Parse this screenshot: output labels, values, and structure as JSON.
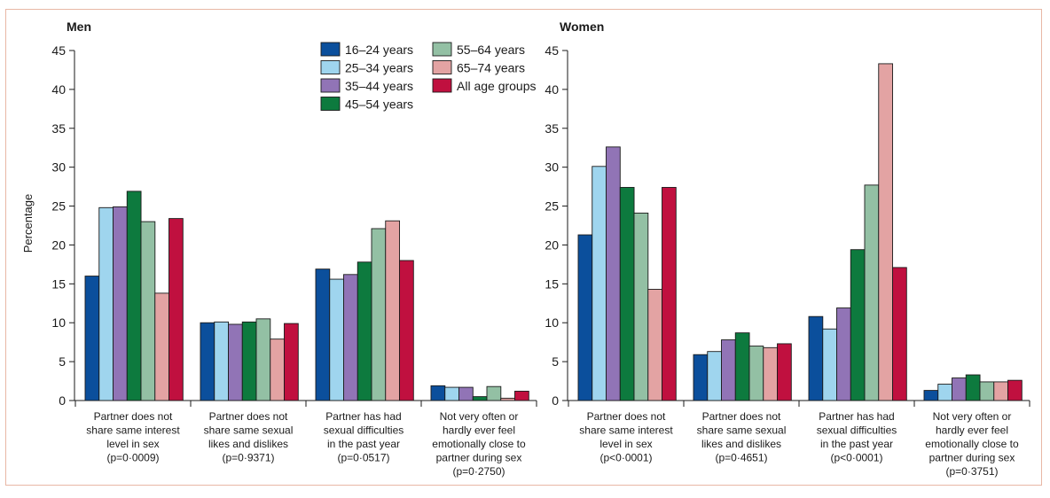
{
  "figure": {
    "y_axis_label": "Percentage",
    "legend": [
      {
        "label": "16–24 years",
        "color": "#0b4f9c"
      },
      {
        "label": "25–34 years",
        "color": "#9fd5ee"
      },
      {
        "label": "35–44 years",
        "color": "#9174b6"
      },
      {
        "label": "45–54 years",
        "color": "#0d7a3e"
      },
      {
        "label": "55–64 years",
        "color": "#93c0a4"
      },
      {
        "label": "65–74 years",
        "color": "#e3a3a3"
      },
      {
        "label": "All age groups",
        "color": "#c0103f"
      }
    ]
  },
  "chart_data": [
    {
      "type": "bar",
      "title": "Men",
      "ylabel": "Percentage",
      "ylim": [
        0,
        45
      ],
      "yticks": [
        0,
        5,
        10,
        15,
        20,
        25,
        30,
        35,
        40,
        45
      ],
      "categories": [
        [
          "Partner does not",
          "share same interest",
          "level in sex",
          "(p=0·0009)"
        ],
        [
          "Partner does not",
          "share same sexual",
          "likes and dislikes",
          "(p=0·9371)"
        ],
        [
          "Partner has had",
          "sexual difficulties",
          "in the past year",
          "(p=0·0517)"
        ],
        [
          "Not very often or",
          "hardly ever feel",
          "emotionally close to",
          "partner during sex",
          "(p=0·2750)"
        ]
      ],
      "series": [
        {
          "name": "16–24 years",
          "values": [
            16.0,
            10.0,
            16.9,
            1.9
          ]
        },
        {
          "name": "25–34 years",
          "values": [
            24.8,
            10.1,
            15.6,
            1.7
          ]
        },
        {
          "name": "35–44 years",
          "values": [
            24.9,
            9.8,
            16.2,
            1.7
          ]
        },
        {
          "name": "45–54 years",
          "values": [
            26.9,
            10.1,
            17.8,
            0.5
          ]
        },
        {
          "name": "55–64 years",
          "values": [
            23.0,
            10.5,
            22.1,
            1.8
          ]
        },
        {
          "name": "65–74 years",
          "values": [
            13.8,
            7.9,
            23.1,
            0.3
          ]
        },
        {
          "name": "All age groups",
          "values": [
            23.4,
            9.9,
            18.0,
            1.2
          ]
        }
      ],
      "legend": "top-center"
    },
    {
      "type": "bar",
      "title": "Women",
      "ylim": [
        0,
        45
      ],
      "yticks": [
        0,
        5,
        10,
        15,
        20,
        25,
        30,
        35,
        40,
        45
      ],
      "categories": [
        [
          "Partner does not",
          "share same interest",
          "level in sex",
          "(p<0·0001)"
        ],
        [
          "Partner does not",
          "share same sexual",
          "likes and dislikes",
          "(p=0·4651)"
        ],
        [
          "Partner has had",
          "sexual difficulties",
          "in the past year",
          "(p<0·0001)"
        ],
        [
          "Not very often or",
          "hardly ever feel",
          "emotionally close to",
          "partner during sex",
          "(p=0·3751)"
        ]
      ],
      "series": [
        {
          "name": "16–24 years",
          "values": [
            21.3,
            5.9,
            10.8,
            1.3
          ]
        },
        {
          "name": "25–34 years",
          "values": [
            30.1,
            6.3,
            9.2,
            2.1
          ]
        },
        {
          "name": "35–44 years",
          "values": [
            32.6,
            7.8,
            11.9,
            2.9
          ]
        },
        {
          "name": "45–54 years",
          "values": [
            27.4,
            8.7,
            19.4,
            3.3
          ]
        },
        {
          "name": "55–64 years",
          "values": [
            24.1,
            7.0,
            27.7,
            2.4
          ]
        },
        {
          "name": "65–74 years",
          "values": [
            14.3,
            6.8,
            43.3,
            2.4
          ]
        },
        {
          "name": "All age groups",
          "values": [
            27.4,
            7.3,
            17.1,
            2.6
          ]
        }
      ]
    }
  ]
}
